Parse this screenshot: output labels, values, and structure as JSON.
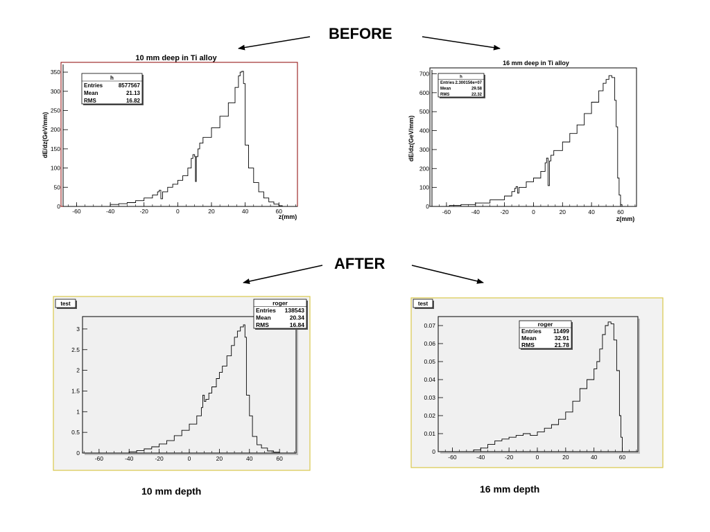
{
  "headings": {
    "before": "BEFORE",
    "after": "AFTER"
  },
  "captions": {
    "left": "10 mm depth",
    "right": "16 mm depth"
  },
  "chart_data": [
    {
      "type": "histogram",
      "title": "10 mm deep in Ti alloy",
      "xlabel": "z(mm)",
      "ylabel": "dE/dz(GeV/mm)",
      "xlim": [
        -68,
        71
      ],
      "ylim": [
        0,
        370
      ],
      "x_ticks": [
        -60,
        -40,
        -20,
        0,
        20,
        40,
        60
      ],
      "y_ticks": [
        0,
        50,
        100,
        150,
        200,
        250,
        300,
        350
      ],
      "stats": {
        "title": "h",
        "rows": [
          [
            "Entries",
            "8577567"
          ],
          [
            "Mean",
            "21.13"
          ],
          [
            "RMS",
            "16.82"
          ]
        ]
      },
      "points": [
        [
          -60,
          0
        ],
        [
          -45,
          0
        ],
        [
          -40,
          5
        ],
        [
          -35,
          7
        ],
        [
          -30,
          10
        ],
        [
          -25,
          15
        ],
        [
          -20,
          22
        ],
        [
          -15,
          30
        ],
        [
          -12,
          38
        ],
        [
          -11,
          42
        ],
        [
          -10,
          20
        ],
        [
          -9,
          38
        ],
        [
          -6,
          50
        ],
        [
          -3,
          58
        ],
        [
          0,
          68
        ],
        [
          3,
          80
        ],
        [
          6,
          100
        ],
        [
          8,
          125
        ],
        [
          9,
          135
        ],
        [
          10,
          130
        ],
        [
          10.5,
          65
        ],
        [
          11,
          130
        ],
        [
          12,
          150
        ],
        [
          13,
          165
        ],
        [
          15,
          180
        ],
        [
          20,
          205
        ],
        [
          25,
          235
        ],
        [
          30,
          270
        ],
        [
          34,
          310
        ],
        [
          36,
          340
        ],
        [
          37,
          350
        ],
        [
          38,
          352
        ],
        [
          39,
          320
        ],
        [
          40,
          160
        ],
        [
          42,
          100
        ],
        [
          45,
          62
        ],
        [
          48,
          38
        ],
        [
          51,
          22
        ],
        [
          54,
          12
        ],
        [
          57,
          6
        ],
        [
          60,
          2
        ],
        [
          62,
          0
        ]
      ]
    },
    {
      "type": "histogram",
      "title": "16 mm deep in Ti alloy",
      "xlabel": "z(mm)",
      "ylabel": "dE/dz(GeV/mm)",
      "xlim": [
        -70,
        71
      ],
      "ylim": [
        0,
        720
      ],
      "x_ticks": [
        -60,
        -40,
        -20,
        0,
        20,
        40,
        60
      ],
      "y_ticks": [
        0,
        100,
        200,
        300,
        400,
        500,
        600,
        700
      ],
      "stats": {
        "title": "h",
        "rows": [
          [
            "Entries",
            "2.300156e+07"
          ],
          [
            "Mean",
            "29.58"
          ],
          [
            "RMS",
            "22.32"
          ]
        ]
      },
      "points": [
        [
          -60,
          0
        ],
        [
          -58,
          5
        ],
        [
          -50,
          10
        ],
        [
          -40,
          18
        ],
        [
          -30,
          35
        ],
        [
          -20,
          55
        ],
        [
          -15,
          78
        ],
        [
          -13,
          95
        ],
        [
          -12,
          105
        ],
        [
          -11,
          70
        ],
        [
          -10,
          100
        ],
        [
          -5,
          130
        ],
        [
          0,
          150
        ],
        [
          5,
          185
        ],
        [
          8,
          230
        ],
        [
          9,
          255
        ],
        [
          10,
          110
        ],
        [
          11,
          240
        ],
        [
          12,
          270
        ],
        [
          14,
          295
        ],
        [
          20,
          340
        ],
        [
          25,
          385
        ],
        [
          30,
          430
        ],
        [
          35,
          490
        ],
        [
          40,
          550
        ],
        [
          45,
          610
        ],
        [
          48,
          650
        ],
        [
          50,
          670
        ],
        [
          52,
          690
        ],
        [
          54,
          680
        ],
        [
          56,
          560
        ],
        [
          57,
          420
        ],
        [
          58,
          150
        ],
        [
          59,
          60
        ],
        [
          60,
          10
        ],
        [
          61,
          0
        ]
      ]
    },
    {
      "type": "histogram",
      "title": "test",
      "xlabel": "",
      "ylabel": "",
      "xlim": [
        -71,
        71
      ],
      "ylim": [
        0,
        3.3
      ],
      "x_ticks": [
        -60,
        -40,
        -20,
        0,
        20,
        40,
        60
      ],
      "y_ticks": [
        0,
        0.5,
        1,
        1.5,
        2,
        2.5,
        3
      ],
      "stats": {
        "title": "roger",
        "rows": [
          [
            "Entries",
            "138543"
          ],
          [
            "Mean",
            "20.34"
          ],
          [
            "RMS",
            "16.84"
          ]
        ]
      },
      "points": [
        [
          -60,
          0
        ],
        [
          -45,
          0
        ],
        [
          -40,
          0.03
        ],
        [
          -35,
          0.06
        ],
        [
          -30,
          0.1
        ],
        [
          -25,
          0.15
        ],
        [
          -20,
          0.22
        ],
        [
          -15,
          0.3
        ],
        [
          -10,
          0.42
        ],
        [
          -5,
          0.55
        ],
        [
          0,
          0.7
        ],
        [
          5,
          0.9
        ],
        [
          8,
          1.1
        ],
        [
          9,
          1.4
        ],
        [
          10,
          1.25
        ],
        [
          11,
          1.3
        ],
        [
          13,
          1.45
        ],
        [
          15,
          1.6
        ],
        [
          18,
          1.8
        ],
        [
          20,
          1.95
        ],
        [
          22,
          2.1
        ],
        [
          25,
          2.35
        ],
        [
          28,
          2.6
        ],
        [
          30,
          2.8
        ],
        [
          32,
          2.95
        ],
        [
          34,
          3.05
        ],
        [
          36,
          3.1
        ],
        [
          37,
          2.8
        ],
        [
          38,
          1.4
        ],
        [
          40,
          0.9
        ],
        [
          42,
          0.4
        ],
        [
          45,
          0.2
        ],
        [
          48,
          0.12
        ],
        [
          52,
          0.05
        ],
        [
          56,
          0.02
        ],
        [
          60,
          0
        ]
      ]
    },
    {
      "type": "histogram",
      "title": "test",
      "xlabel": "",
      "ylabel": "",
      "xlim": [
        -70,
        71
      ],
      "ylim": [
        0,
        0.075
      ],
      "x_ticks": [
        -60,
        -40,
        -20,
        0,
        20,
        40,
        60
      ],
      "y_ticks": [
        0,
        0.01,
        0.02,
        0.03,
        0.04,
        0.05,
        0.06,
        0.07
      ],
      "stats": {
        "title": "roger",
        "rows": [
          [
            "Entries",
            "11499"
          ],
          [
            "Mean",
            "32.91"
          ],
          [
            "RMS",
            "21.78"
          ]
        ]
      },
      "points": [
        [
          -60,
          0
        ],
        [
          -45,
          0.001
        ],
        [
          -40,
          0.002
        ],
        [
          -35,
          0.004
        ],
        [
          -30,
          0.006
        ],
        [
          -25,
          0.007
        ],
        [
          -20,
          0.008
        ],
        [
          -15,
          0.009
        ],
        [
          -10,
          0.01
        ],
        [
          -5,
          0.009
        ],
        [
          0,
          0.011
        ],
        [
          5,
          0.013
        ],
        [
          10,
          0.015
        ],
        [
          15,
          0.018
        ],
        [
          20,
          0.022
        ],
        [
          25,
          0.028
        ],
        [
          30,
          0.035
        ],
        [
          35,
          0.04
        ],
        [
          40,
          0.046
        ],
        [
          42,
          0.05
        ],
        [
          44,
          0.057
        ],
        [
          46,
          0.065
        ],
        [
          48,
          0.07
        ],
        [
          50,
          0.072
        ],
        [
          52,
          0.071
        ],
        [
          54,
          0.062
        ],
        [
          56,
          0.045
        ],
        [
          58,
          0.02
        ],
        [
          59,
          0.008
        ],
        [
          60,
          0
        ]
      ]
    }
  ]
}
